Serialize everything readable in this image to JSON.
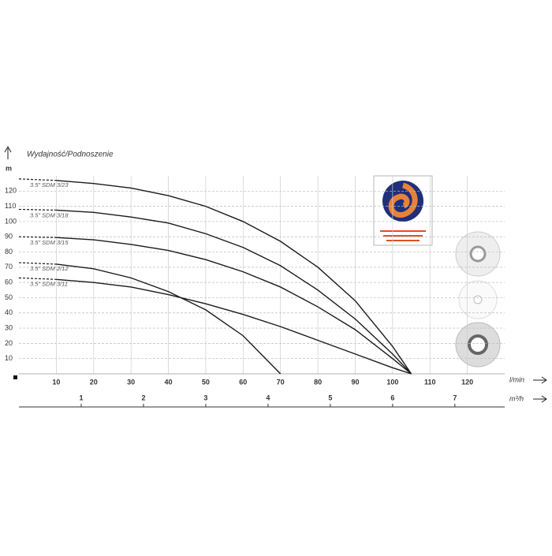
{
  "chart_data": {
    "type": "line",
    "y_label": "Wydajność/Podnoszenie",
    "y_unit": "m",
    "x_unit": "l/min",
    "x2_unit": "m³/h",
    "x": [
      0,
      10,
      20,
      30,
      40,
      50,
      60,
      70,
      80,
      90,
      100,
      105
    ],
    "series": [
      {
        "name": "3.5\" SDM 3/23",
        "color": "#1a1a1a",
        "values": [
          128,
          127,
          125,
          122,
          117,
          110,
          100,
          87,
          70,
          48,
          18,
          0
        ]
      },
      {
        "name": "3.5\" SDM 3/18",
        "color": "#1a1a1a",
        "values": [
          108,
          107.5,
          106,
          103,
          99,
          92,
          83,
          71,
          55,
          36,
          13,
          0
        ]
      },
      {
        "name": "3.5\" SDM 3/15",
        "color": "#1a1a1a",
        "values": [
          90,
          89.5,
          88,
          85,
          81,
          75,
          67,
          57,
          44,
          29,
          10,
          0
        ]
      },
      {
        "name": "3.5\" SDM 2/12",
        "color": "#1a1a1a",
        "values": [
          73,
          72,
          69,
          63,
          54,
          42,
          25,
          0,
          null,
          null,
          null,
          null
        ]
      },
      {
        "name": "3.5\" SDM 3/11",
        "color": "#1a1a1a",
        "values": [
          63,
          62,
          60,
          57,
          52,
          46,
          39,
          31,
          22,
          13,
          4,
          0
        ]
      }
    ],
    "xlim": [
      0,
      130
    ],
    "xticks": [
      10,
      20,
      30,
      40,
      50,
      60,
      70,
      80,
      90,
      100,
      110,
      120
    ],
    "ylim": [
      0,
      130
    ],
    "yticks": [
      10,
      20,
      30,
      40,
      50,
      60,
      70,
      80,
      90,
      100,
      110,
      120
    ],
    "x2lim": [
      0,
      7.8
    ],
    "x2ticks": [
      1,
      2,
      3,
      4,
      5,
      6,
      7
    ],
    "grid": true
  }
}
